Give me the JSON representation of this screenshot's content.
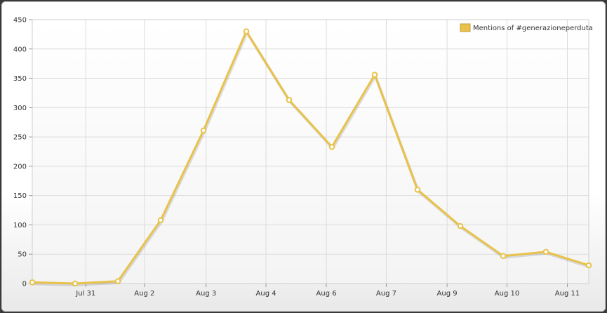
{
  "chart_data": {
    "type": "line",
    "title": "",
    "xlabel": "",
    "ylabel": "",
    "ylim": [
      0,
      450
    ],
    "yticks": [
      0,
      50,
      100,
      150,
      200,
      250,
      300,
      350,
      400,
      450
    ],
    "xticks": [
      {
        "label": "Jul 31",
        "x": 1.25
      },
      {
        "label": "Aug 2",
        "x": 2.62
      },
      {
        "label": "Aug 3",
        "x": 4.06
      },
      {
        "label": "Aug 4",
        "x": 5.46
      },
      {
        "label": "Aug 6",
        "x": 6.87
      },
      {
        "label": "Aug 7",
        "x": 8.27
      },
      {
        "label": "Aug 9",
        "x": 9.69
      },
      {
        "label": "Aug 10",
        "x": 11.09
      },
      {
        "label": "Aug 11",
        "x": 12.5
      }
    ],
    "xlim": [
      0,
      13
    ],
    "grid": true,
    "legend_position": "top-right",
    "series": [
      {
        "name": "Mentions of #generazioneperduta",
        "color": "#e8c24a",
        "x": [
          0,
          1,
          2,
          3,
          4,
          5,
          6,
          7,
          8,
          9,
          10,
          11,
          12,
          13
        ],
        "values": [
          2,
          0,
          4,
          108,
          261,
          430,
          313,
          233,
          356,
          160,
          98,
          47,
          54,
          31
        ]
      }
    ]
  }
}
